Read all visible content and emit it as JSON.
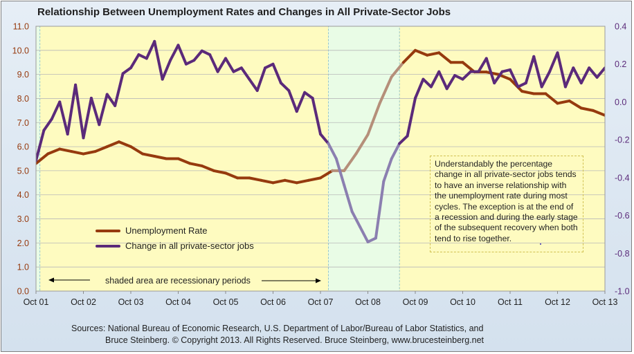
{
  "chart_data": {
    "type": "line",
    "title": "Relationship Between Unemployment Rates and Changes in All Private-Sector Jobs",
    "x_tick_labels": [
      "Oct 01",
      "Oct 02",
      "Oct 03",
      "Oct 04",
      "Oct 05",
      "Oct 06",
      "Oct 07",
      "Oct 08",
      "Oct 09",
      "Oct 10",
      "Oct 11",
      "Oct 12",
      "Oct 13"
    ],
    "x_range": [
      "2001-10",
      "2013-10"
    ],
    "y_left": {
      "ylim": [
        0,
        11
      ],
      "ticks": [
        "0.0",
        "1.0",
        "2.0",
        "3.0",
        "4.0",
        "5.0",
        "6.0",
        "7.0",
        "8.0",
        "9.0",
        "10.0",
        "11.0"
      ]
    },
    "y_right": {
      "ylim": [
        -1.0,
        0.4
      ],
      "ticks": [
        "-1.0",
        "-0.8",
        "-0.6",
        "-0.4",
        "-0.2",
        "0.0",
        "0.2",
        "0.4"
      ]
    },
    "grid": true,
    "recessions": [
      [
        "2001-03",
        "2001-11"
      ],
      [
        "2007-12",
        "2009-06"
      ]
    ],
    "series": [
      {
        "name": "Unemployment Rate",
        "axis": "left",
        "color": "#963a0e",
        "x": [
          "2001-10",
          "2002-01",
          "2002-04",
          "2002-07",
          "2002-10",
          "2003-01",
          "2003-04",
          "2003-07",
          "2003-10",
          "2004-01",
          "2004-04",
          "2004-07",
          "2004-10",
          "2005-01",
          "2005-04",
          "2005-07",
          "2005-10",
          "2006-01",
          "2006-04",
          "2006-07",
          "2006-10",
          "2007-01",
          "2007-04",
          "2007-07",
          "2007-10",
          "2008-01",
          "2008-04",
          "2008-07",
          "2008-10",
          "2009-01",
          "2009-04",
          "2009-07",
          "2009-10",
          "2010-01",
          "2010-04",
          "2010-07",
          "2010-10",
          "2011-01",
          "2011-04",
          "2011-07",
          "2011-10",
          "2012-01",
          "2012-04",
          "2012-07",
          "2012-10",
          "2013-01",
          "2013-04",
          "2013-07",
          "2013-10"
        ],
        "values": [
          5.3,
          5.7,
          5.9,
          5.8,
          5.7,
          5.8,
          6.0,
          6.2,
          6.0,
          5.7,
          5.6,
          5.5,
          5.5,
          5.3,
          5.2,
          5.0,
          4.9,
          4.7,
          4.7,
          4.6,
          4.5,
          4.6,
          4.5,
          4.6,
          4.7,
          5.0,
          5.0,
          5.7,
          6.5,
          7.8,
          8.9,
          9.5,
          10.0,
          9.8,
          9.9,
          9.5,
          9.5,
          9.1,
          9.1,
          9.0,
          8.8,
          8.3,
          8.2,
          8.2,
          7.8,
          7.9,
          7.6,
          7.5,
          7.3
        ]
      },
      {
        "name": "Change in all private-sector jobs",
        "axis": "right",
        "color": "#5b2a7a",
        "x": [
          "2001-10",
          "2001-12",
          "2002-02",
          "2002-04",
          "2002-06",
          "2002-08",
          "2002-10",
          "2002-12",
          "2003-02",
          "2003-04",
          "2003-06",
          "2003-08",
          "2003-10",
          "2003-12",
          "2004-02",
          "2004-04",
          "2004-06",
          "2004-08",
          "2004-10",
          "2004-12",
          "2005-02",
          "2005-04",
          "2005-06",
          "2005-08",
          "2005-10",
          "2005-12",
          "2006-02",
          "2006-04",
          "2006-06",
          "2006-08",
          "2006-10",
          "2006-12",
          "2007-02",
          "2007-04",
          "2007-06",
          "2007-08",
          "2007-10",
          "2007-12",
          "2008-02",
          "2008-04",
          "2008-06",
          "2008-08",
          "2008-10",
          "2008-12",
          "2009-02",
          "2009-04",
          "2009-06",
          "2009-08",
          "2009-10",
          "2009-12",
          "2010-02",
          "2010-04",
          "2010-06",
          "2010-08",
          "2010-10",
          "2010-12",
          "2011-02",
          "2011-04",
          "2011-06",
          "2011-08",
          "2011-10",
          "2011-12",
          "2012-02",
          "2012-04",
          "2012-06",
          "2012-08",
          "2012-10",
          "2012-12",
          "2013-02",
          "2013-04",
          "2013-06",
          "2013-08",
          "2013-10"
        ],
        "values": [
          -0.31,
          -0.15,
          -0.09,
          0.0,
          -0.17,
          0.09,
          -0.19,
          0.02,
          -0.12,
          0.04,
          -0.02,
          0.15,
          0.18,
          0.25,
          0.23,
          0.32,
          0.12,
          0.22,
          0.3,
          0.2,
          0.22,
          0.27,
          0.25,
          0.16,
          0.23,
          0.16,
          0.18,
          0.12,
          0.06,
          0.18,
          0.2,
          0.1,
          0.06,
          -0.05,
          0.05,
          0.02,
          -0.17,
          -0.22,
          -0.3,
          -0.44,
          -0.58,
          -0.66,
          -0.74,
          -0.72,
          -0.42,
          -0.3,
          -0.22,
          -0.18,
          0.02,
          0.12,
          0.08,
          0.16,
          0.07,
          0.14,
          0.12,
          0.16,
          0.16,
          0.23,
          0.1,
          0.16,
          0.17,
          0.08,
          0.1,
          0.24,
          0.08,
          0.16,
          0.26,
          0.08,
          0.18,
          0.1,
          0.18,
          0.13,
          0.18
        ]
      }
    ],
    "legend": [
      "Unemployment Rate",
      "Change in all private-sector jobs"
    ],
    "legend_placement": "bottom-left",
    "annotation": "Understandably the percentage change in all private-sector jobs tends to have an inverse relationship with the unemployment rate during most cycles. The exception is at the end of a recession and during the early stage of the subsequent recovery when both tend to rise together.",
    "shaded_note": "shaded area are recessionary periods",
    "colors": {
      "plot_bg": "#fefbc0",
      "recession_bg": "#e9fce6",
      "left_axis_text": "#963a0e",
      "right_axis_text": "#5b2a7a"
    }
  },
  "sources": {
    "line1": "Sources: National Bureau of Economic Research, U.S. Department of Labor/Bureau of Labor Statistics, and",
    "line2": "Bruce Steinberg.  © Copyright 2013. All Rights Reserved. Bruce Steinberg, www.brucesteinberg.net"
  }
}
